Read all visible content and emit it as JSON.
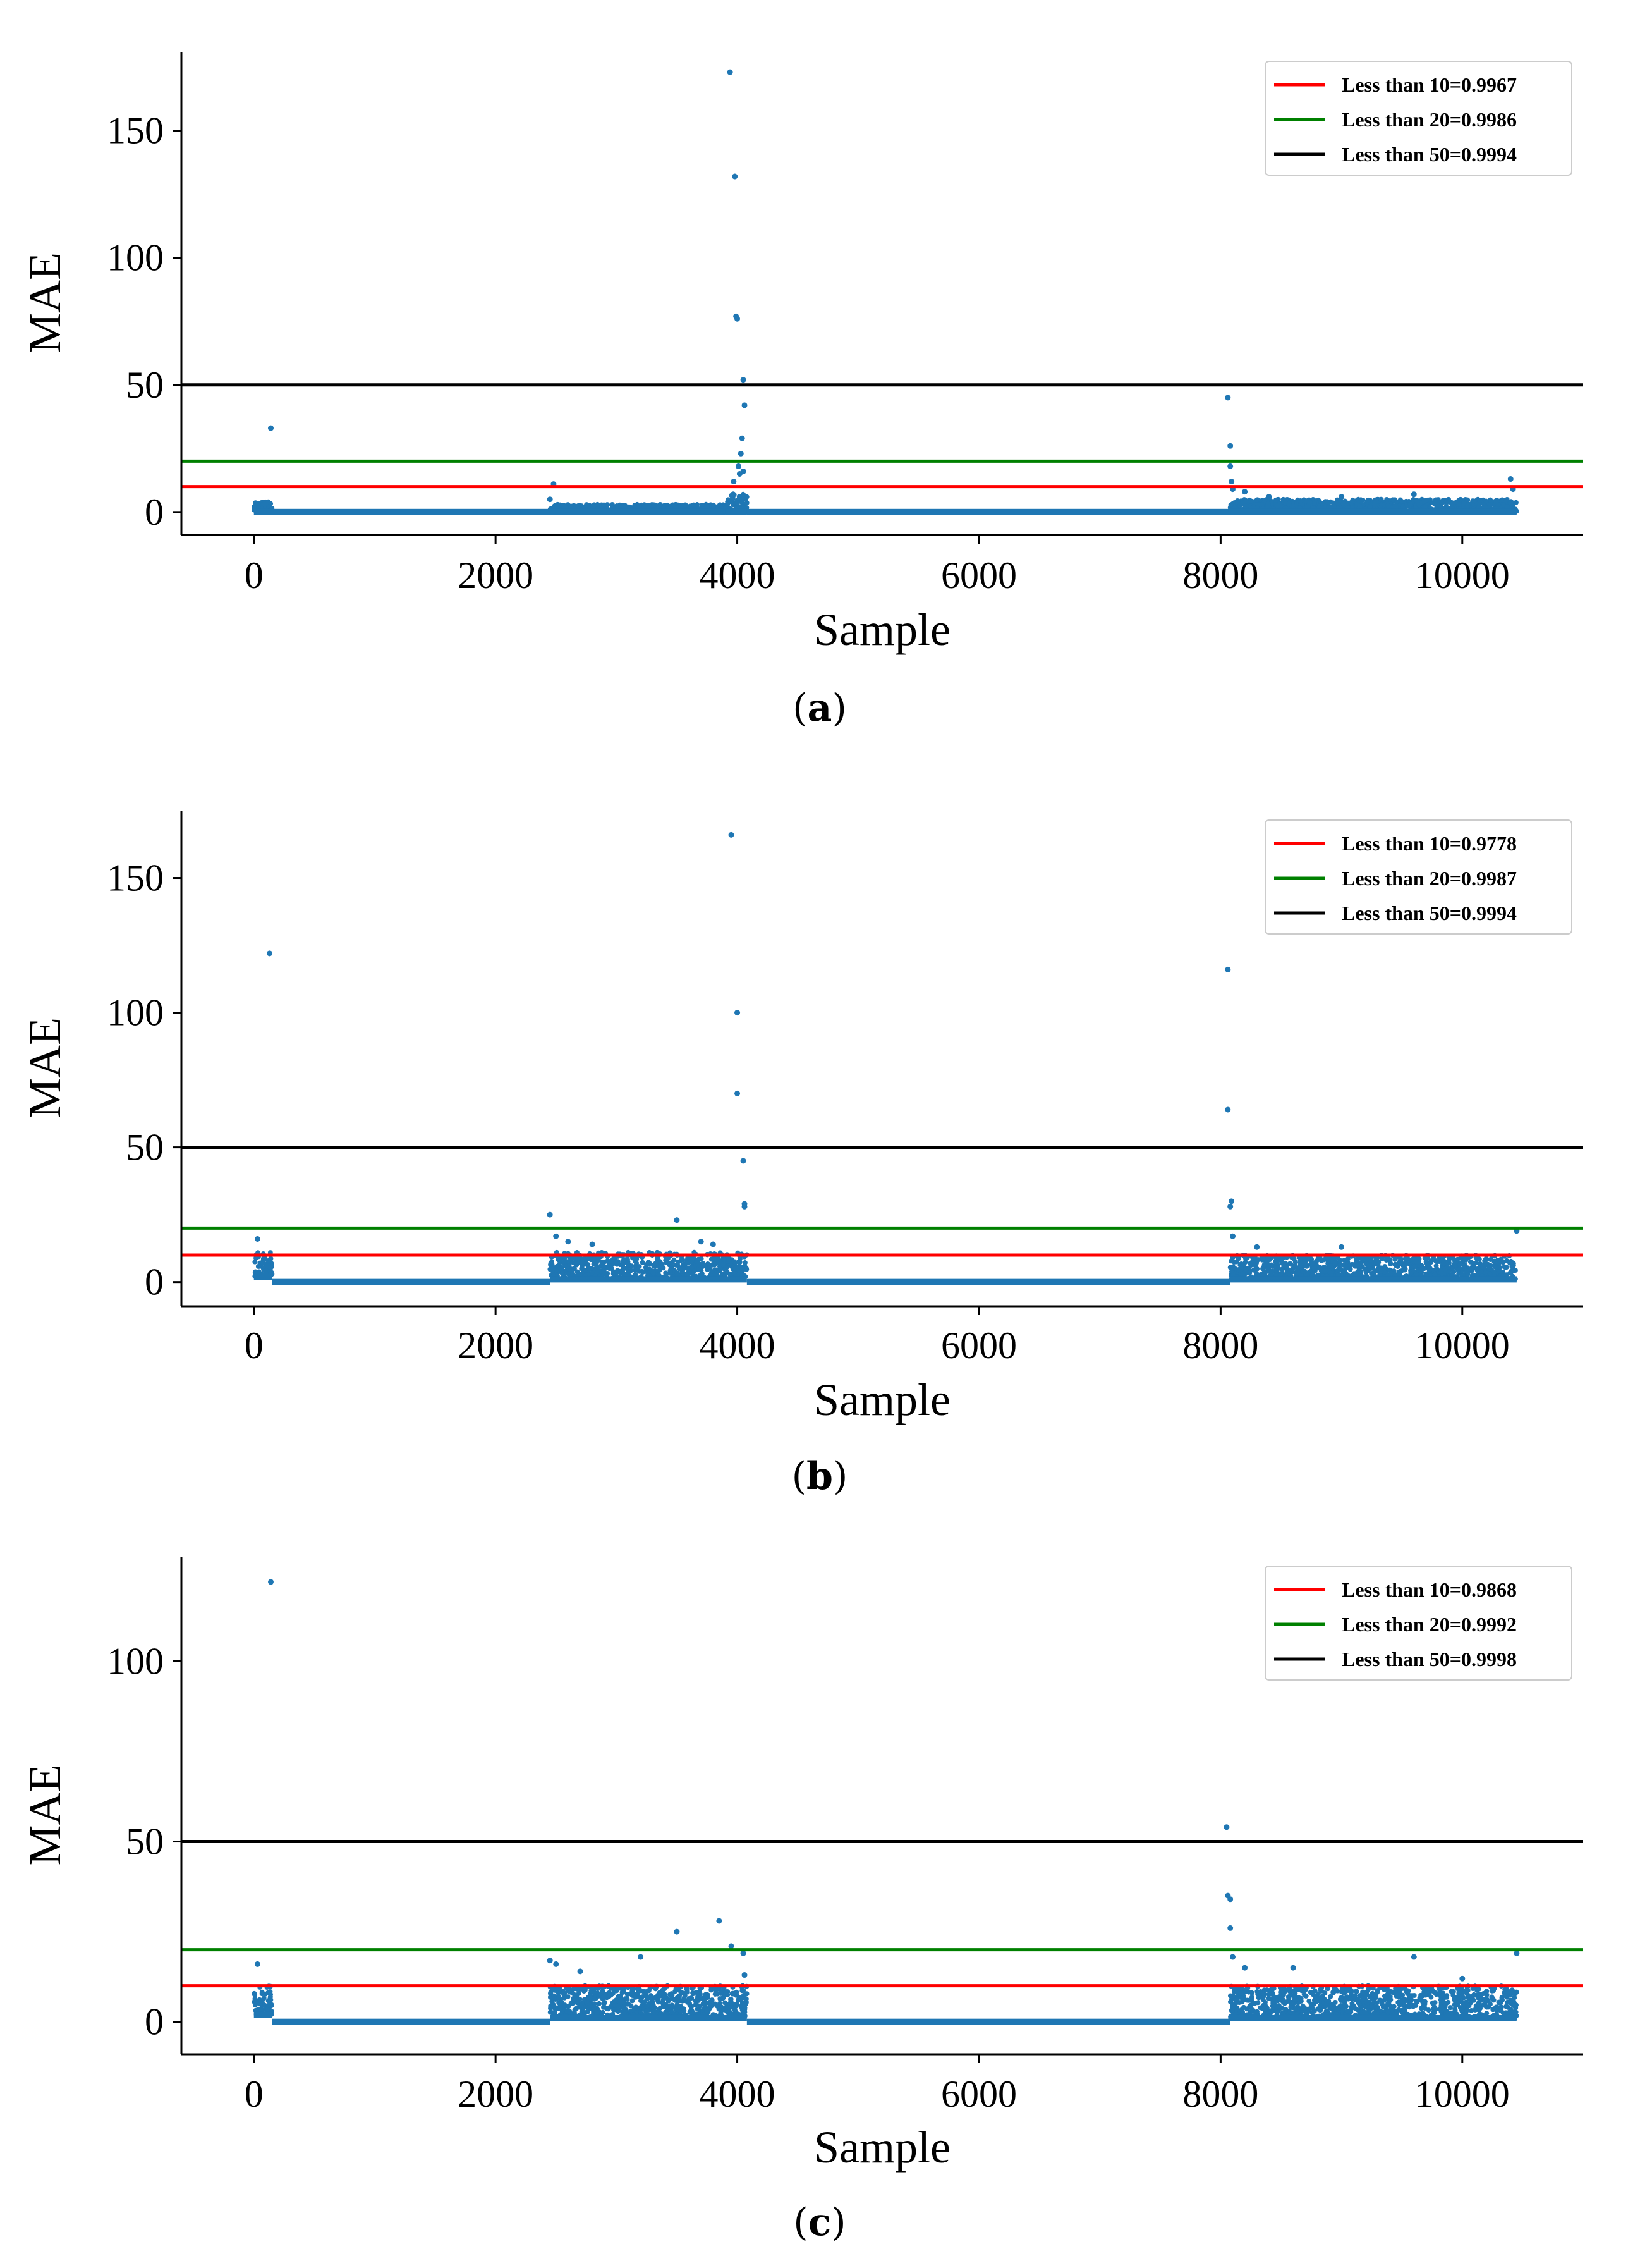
{
  "colors": {
    "scatter": "#1f77b4",
    "line_10": "#ff0000",
    "line_20": "#008000",
    "line_50": "#000000",
    "axis": "#000000"
  },
  "chart_data": [
    {
      "type": "scatter",
      "caption": "a",
      "xlabel": "Sample",
      "ylabel": "MAE",
      "xlim": [
        -600,
        11000
      ],
      "ylim": [
        -9,
        181
      ],
      "xticks": [
        0,
        2000,
        4000,
        6000,
        8000,
        10000
      ],
      "yticks": [
        0,
        50,
        100,
        150
      ],
      "legend_position": "top-right",
      "hlines": [
        {
          "y": 10,
          "color": "red",
          "label": "Less than 10=0.9967"
        },
        {
          "y": 20,
          "color": "green",
          "label": "Less than 20=0.9986"
        },
        {
          "y": 50,
          "color": "black",
          "label": "Less than 50=0.9994"
        }
      ],
      "segments": [
        {
          "x": [
            0,
            150
          ],
          "min": 0,
          "max": 4
        },
        {
          "x": [
            150,
            2450
          ],
          "min": 0,
          "max": 0
        },
        {
          "x": [
            2450,
            3900
          ],
          "min": 0,
          "max": 3
        },
        {
          "x": [
            3900,
            4080
          ],
          "min": 0,
          "max": 8
        },
        {
          "x": [
            4080,
            8080
          ],
          "min": 0,
          "max": 0
        },
        {
          "x": [
            8080,
            10450
          ],
          "min": 0,
          "max": 5
        }
      ],
      "outliers": [
        [
          140,
          33
        ],
        [
          2450,
          5
        ],
        [
          2480,
          11
        ],
        [
          3940,
          173
        ],
        [
          3980,
          132
        ],
        [
          3990,
          77
        ],
        [
          4000,
          76
        ],
        [
          4050,
          52
        ],
        [
          4060,
          42
        ],
        [
          4040,
          29
        ],
        [
          4030,
          23
        ],
        [
          4010,
          18
        ],
        [
          3970,
          12
        ],
        [
          4020,
          15
        ],
        [
          4050,
          16
        ],
        [
          8060,
          45
        ],
        [
          8080,
          26
        ],
        [
          8080,
          18
        ],
        [
          8090,
          12
        ],
        [
          8100,
          9
        ],
        [
          8200,
          8
        ],
        [
          8400,
          6
        ],
        [
          9600,
          7
        ],
        [
          10400,
          13
        ],
        [
          10420,
          9
        ],
        [
          9000,
          6
        ]
      ]
    },
    {
      "type": "scatter",
      "caption": "b",
      "xlabel": "Sample",
      "ylabel": "MAE",
      "xlim": [
        -600,
        11000
      ],
      "ylim": [
        -9,
        175
      ],
      "xticks": [
        0,
        2000,
        4000,
        6000,
        8000,
        10000
      ],
      "yticks": [
        0,
        50,
        100,
        150
      ],
      "legend_position": "top-right",
      "hlines": [
        {
          "y": 10,
          "color": "red",
          "label": "Less than 10=0.9778"
        },
        {
          "y": 20,
          "color": "green",
          "label": "Less than 20=0.9987"
        },
        {
          "y": 50,
          "color": "black",
          "label": "Less than 50=0.9994"
        }
      ],
      "segments": [
        {
          "x": [
            0,
            150
          ],
          "min": 2,
          "max": 11
        },
        {
          "x": [
            150,
            2450
          ],
          "min": 0,
          "max": 0
        },
        {
          "x": [
            2450,
            4080
          ],
          "min": 1,
          "max": 11
        },
        {
          "x": [
            4080,
            8080
          ],
          "min": 0,
          "max": 0
        },
        {
          "x": [
            8080,
            10450
          ],
          "min": 1,
          "max": 10
        }
      ],
      "outliers": [
        [
          30,
          16
        ],
        [
          130,
          122
        ],
        [
          2450,
          25
        ],
        [
          2500,
          17
        ],
        [
          2600,
          15
        ],
        [
          2800,
          14
        ],
        [
          3500,
          23
        ],
        [
          3700,
          15
        ],
        [
          3950,
          166
        ],
        [
          4000,
          100
        ],
        [
          4000,
          70
        ],
        [
          4050,
          45
        ],
        [
          4060,
          28
        ],
        [
          4060,
          29
        ],
        [
          3800,
          14
        ],
        [
          8060,
          116
        ],
        [
          8060,
          64
        ],
        [
          8090,
          30
        ],
        [
          8080,
          28
        ],
        [
          8100,
          17
        ],
        [
          8300,
          13
        ],
        [
          9000,
          13
        ],
        [
          10450,
          19
        ]
      ]
    },
    {
      "type": "scatter",
      "caption": "c",
      "xlabel": "Sample",
      "ylabel": "MAE",
      "xlim": [
        -600,
        11000
      ],
      "ylim": [
        -9,
        129
      ],
      "xticks": [
        0,
        2000,
        4000,
        6000,
        8000,
        10000
      ],
      "yticks": [
        0,
        50,
        100
      ],
      "legend_position": "top-right",
      "hlines": [
        {
          "y": 10,
          "color": "red",
          "label": "Less than 10=0.9868"
        },
        {
          "y": 20,
          "color": "green",
          "label": "Less than 20=0.9992"
        },
        {
          "y": 50,
          "color": "black",
          "label": "Less than 50=0.9998"
        }
      ],
      "segments": [
        {
          "x": [
            0,
            150
          ],
          "min": 2,
          "max": 10
        },
        {
          "x": [
            150,
            2450
          ],
          "min": 0,
          "max": 0
        },
        {
          "x": [
            2450,
            4080
          ],
          "min": 1,
          "max": 10
        },
        {
          "x": [
            4080,
            8080
          ],
          "min": 0,
          "max": 0
        },
        {
          "x": [
            8080,
            10450
          ],
          "min": 1,
          "max": 10
        }
      ],
      "outliers": [
        [
          30,
          16
        ],
        [
          140,
          122
        ],
        [
          2450,
          17
        ],
        [
          2500,
          16
        ],
        [
          2700,
          14
        ],
        [
          3200,
          18
        ],
        [
          3500,
          25
        ],
        [
          3850,
          28
        ],
        [
          3950,
          21
        ],
        [
          4050,
          19
        ],
        [
          4060,
          13
        ],
        [
          8050,
          54
        ],
        [
          8060,
          35
        ],
        [
          8080,
          34
        ],
        [
          8080,
          26
        ],
        [
          8100,
          18
        ],
        [
          8200,
          15
        ],
        [
          8600,
          15
        ],
        [
          9600,
          18
        ],
        [
          10450,
          19
        ],
        [
          10000,
          12
        ]
      ]
    }
  ]
}
